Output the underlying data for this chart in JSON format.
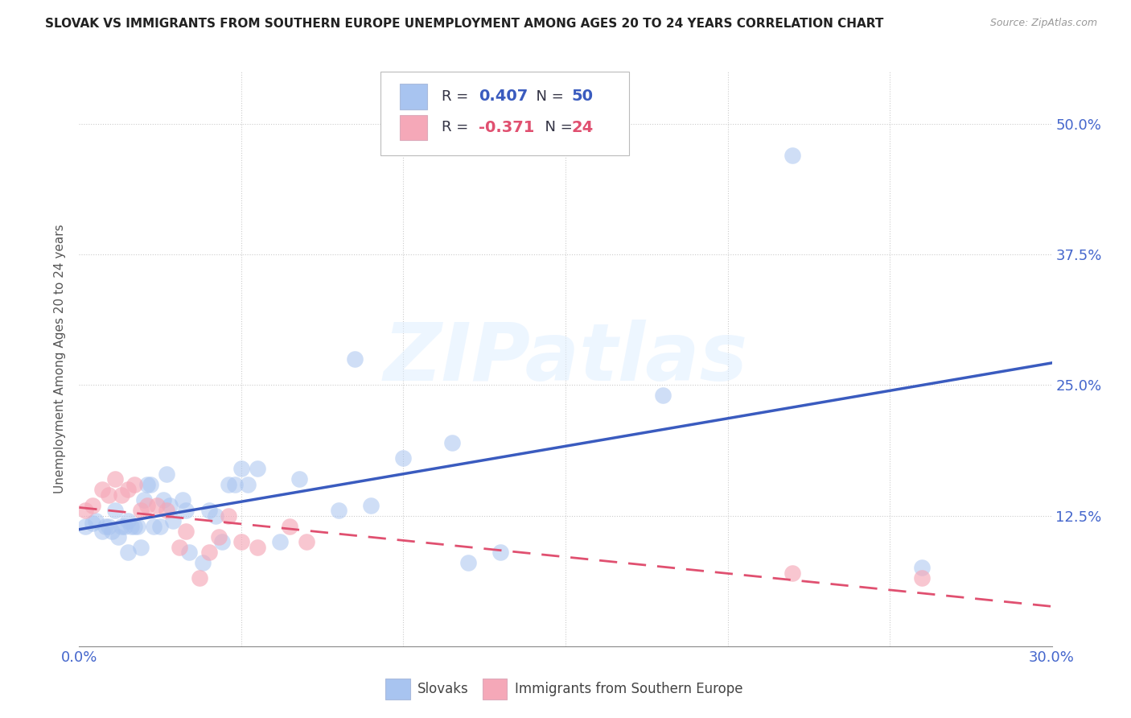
{
  "title": "SLOVAK VS IMMIGRANTS FROM SOUTHERN EUROPE UNEMPLOYMENT AMONG AGES 20 TO 24 YEARS CORRELATION CHART",
  "source": "Source: ZipAtlas.com",
  "ylabel": "Unemployment Among Ages 20 to 24 years",
  "xlim": [
    0.0,
    0.3
  ],
  "ylim": [
    0.0,
    0.55
  ],
  "x_ticks": [
    0.0,
    0.05,
    0.1,
    0.15,
    0.2,
    0.25,
    0.3
  ],
  "y_ticks": [
    0.0,
    0.125,
    0.25,
    0.375,
    0.5
  ],
  "grid_color": "#cccccc",
  "background_color": "#ffffff",
  "slovaks_color": "#a8c4f0",
  "immigrants_color": "#f5a8b8",
  "slovaks_line_color": "#3a5bbf",
  "immigrants_line_color": "#e05070",
  "watermark": "ZIPatlas",
  "tick_color": "#4466cc",
  "slovaks_x": [
    0.002,
    0.004,
    0.005,
    0.007,
    0.008,
    0.009,
    0.01,
    0.011,
    0.012,
    0.013,
    0.014,
    0.015,
    0.015,
    0.016,
    0.017,
    0.018,
    0.019,
    0.02,
    0.021,
    0.022,
    0.023,
    0.025,
    0.026,
    0.027,
    0.028,
    0.029,
    0.032,
    0.033,
    0.034,
    0.038,
    0.04,
    0.042,
    0.044,
    0.046,
    0.048,
    0.05,
    0.052,
    0.055,
    0.062,
    0.068,
    0.08,
    0.085,
    0.09,
    0.1,
    0.115,
    0.12,
    0.13,
    0.18,
    0.22,
    0.26
  ],
  "slovaks_y": [
    0.115,
    0.118,
    0.12,
    0.11,
    0.115,
    0.115,
    0.11,
    0.13,
    0.105,
    0.115,
    0.115,
    0.09,
    0.12,
    0.115,
    0.115,
    0.115,
    0.095,
    0.14,
    0.155,
    0.155,
    0.115,
    0.115,
    0.14,
    0.165,
    0.135,
    0.12,
    0.14,
    0.13,
    0.09,
    0.08,
    0.13,
    0.125,
    0.1,
    0.155,
    0.155,
    0.17,
    0.155,
    0.17,
    0.1,
    0.16,
    0.13,
    0.275,
    0.135,
    0.18,
    0.195,
    0.08,
    0.09,
    0.24,
    0.47,
    0.075
  ],
  "immigrants_x": [
    0.002,
    0.004,
    0.007,
    0.009,
    0.011,
    0.013,
    0.015,
    0.017,
    0.019,
    0.021,
    0.024,
    0.027,
    0.031,
    0.033,
    0.037,
    0.04,
    0.043,
    0.046,
    0.05,
    0.055,
    0.065,
    0.07,
    0.22,
    0.26
  ],
  "immigrants_y": [
    0.13,
    0.135,
    0.15,
    0.145,
    0.16,
    0.145,
    0.15,
    0.155,
    0.13,
    0.135,
    0.135,
    0.13,
    0.095,
    0.11,
    0.065,
    0.09,
    0.105,
    0.125,
    0.1,
    0.095,
    0.115,
    0.1,
    0.07,
    0.065
  ]
}
